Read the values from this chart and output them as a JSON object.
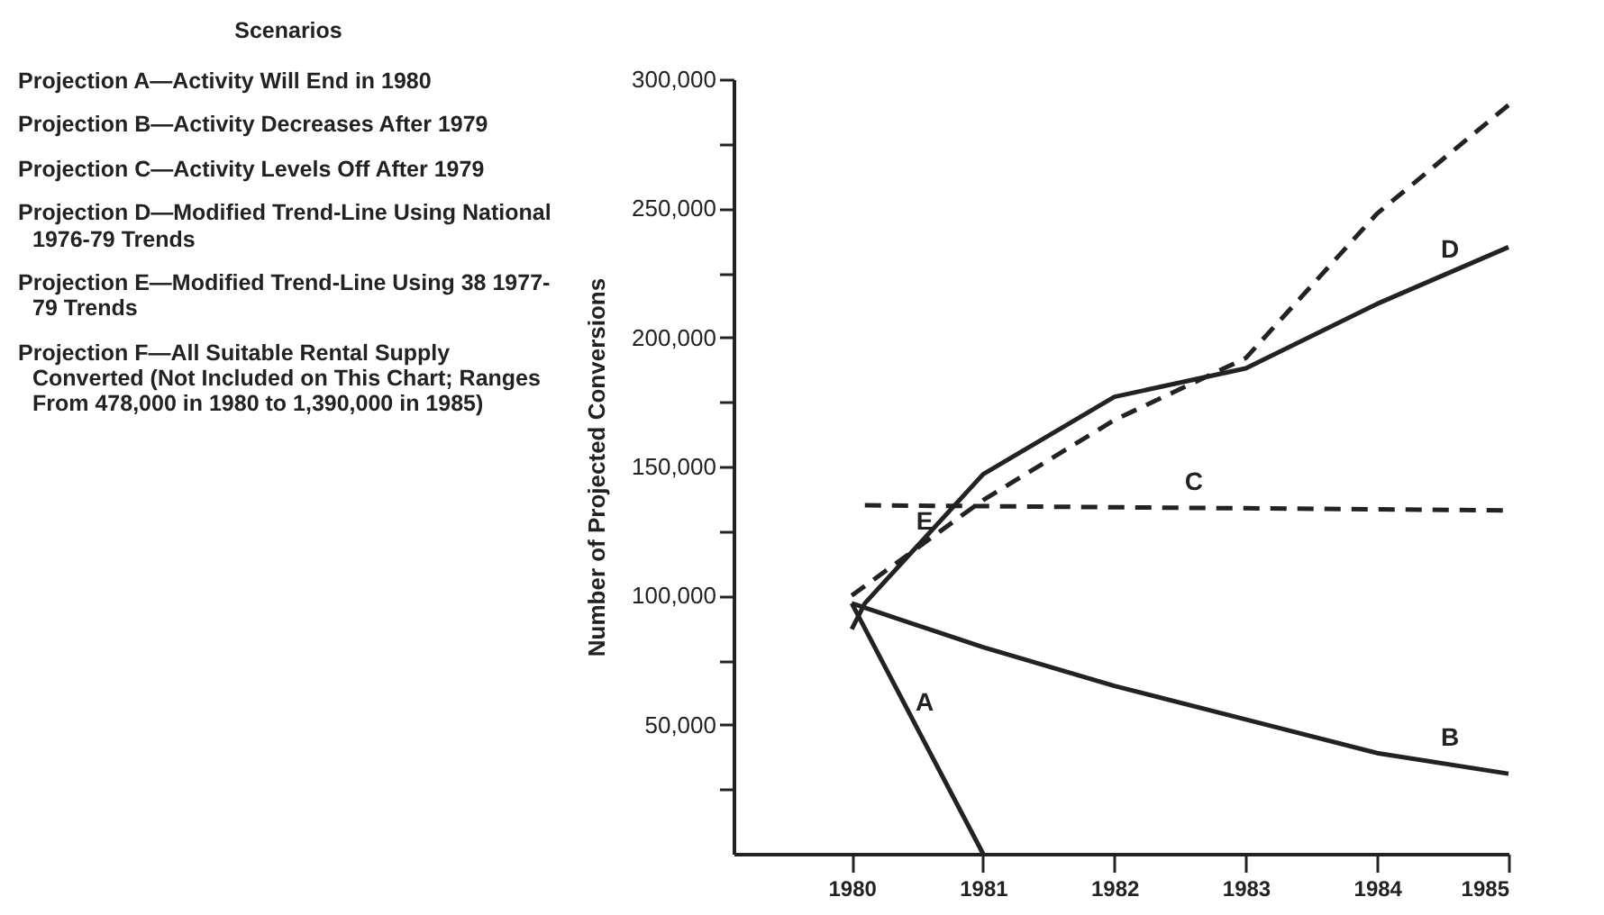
{
  "chart_data": {
    "type": "line",
    "ylabel": "Number of Projected Conversions",
    "annotations": [
      "Scenarios",
      "Projection A—Activity Will End in 1980",
      "Projection B—Activity Decreases After 1979",
      "Projection C—Activity Levels Off After 1979",
      "Projection D—Modified Trend-Line Using National 1976-79 Trends",
      "Projection E—Modified Trend-Line Using 38 1977-79 Trends",
      "Projection F—All Suitable Rental Supply Converted (Not Included on This Chart; Ranges From 478,000 in 1980 to 1,390,000 in 1985)"
    ],
    "xlim": [
      1979.1,
      1985
    ],
    "xticks": [
      {
        "value": 1980,
        "label": "1980"
      },
      {
        "value": 1981,
        "label": "1981"
      },
      {
        "value": 1982,
        "label": "1982"
      },
      {
        "value": 1983,
        "label": "1983"
      },
      {
        "value": 1984,
        "label": "1984"
      },
      {
        "value": 1985,
        "label": "1985"
      }
    ],
    "ylim": [
      0,
      300000
    ],
    "yticks": [
      {
        "value": 25000,
        "label": null
      },
      {
        "value": 50000,
        "label": "50,000"
      },
      {
        "value": 75000,
        "label": null
      },
      {
        "value": 100000,
        "label": "100,000"
      },
      {
        "value": 125000,
        "label": null
      },
      {
        "value": 150000,
        "label": "150,000"
      },
      {
        "value": 175000,
        "label": null
      },
      {
        "value": 200000,
        "label": "200,000"
      },
      {
        "value": 225000,
        "label": null
      },
      {
        "value": 250000,
        "label": "250,000"
      },
      {
        "value": 275000,
        "label": null
      },
      {
        "value": 300000,
        "label": "300,000"
      }
    ],
    "grid": false,
    "marker": "none",
    "series": [
      {
        "name": "A",
        "color": "#222222",
        "line_style": "solid",
        "x": [
          1980,
          1981
        ],
        "values": [
          97000,
          0
        ]
      },
      {
        "name": "B",
        "color": "#222222",
        "line_style": "solid",
        "x": [
          1980,
          1981,
          1982,
          1983,
          1984,
          1985
        ],
        "values": [
          97000,
          80000,
          65000,
          52000,
          39000,
          31000
        ]
      },
      {
        "name": "C",
        "color": "#222222",
        "line_style": "dashed",
        "x": [
          1980.1,
          1985
        ],
        "values": [
          135000,
          133000
        ]
      },
      {
        "name": "D",
        "color": "#222222",
        "line_style": "solid",
        "x": [
          1980,
          1980.1,
          1981,
          1982,
          1983,
          1984,
          1985
        ],
        "values": [
          87000,
          97000,
          147000,
          177000,
          188000,
          213000,
          235000
        ]
      },
      {
        "name": "E",
        "color": "#222222",
        "line_style": "dashed",
        "x": [
          1980,
          1981,
          1982,
          1983,
          1984,
          1985
        ],
        "values": [
          100000,
          137000,
          168000,
          192000,
          248000,
          290000
        ]
      }
    ]
  }
}
